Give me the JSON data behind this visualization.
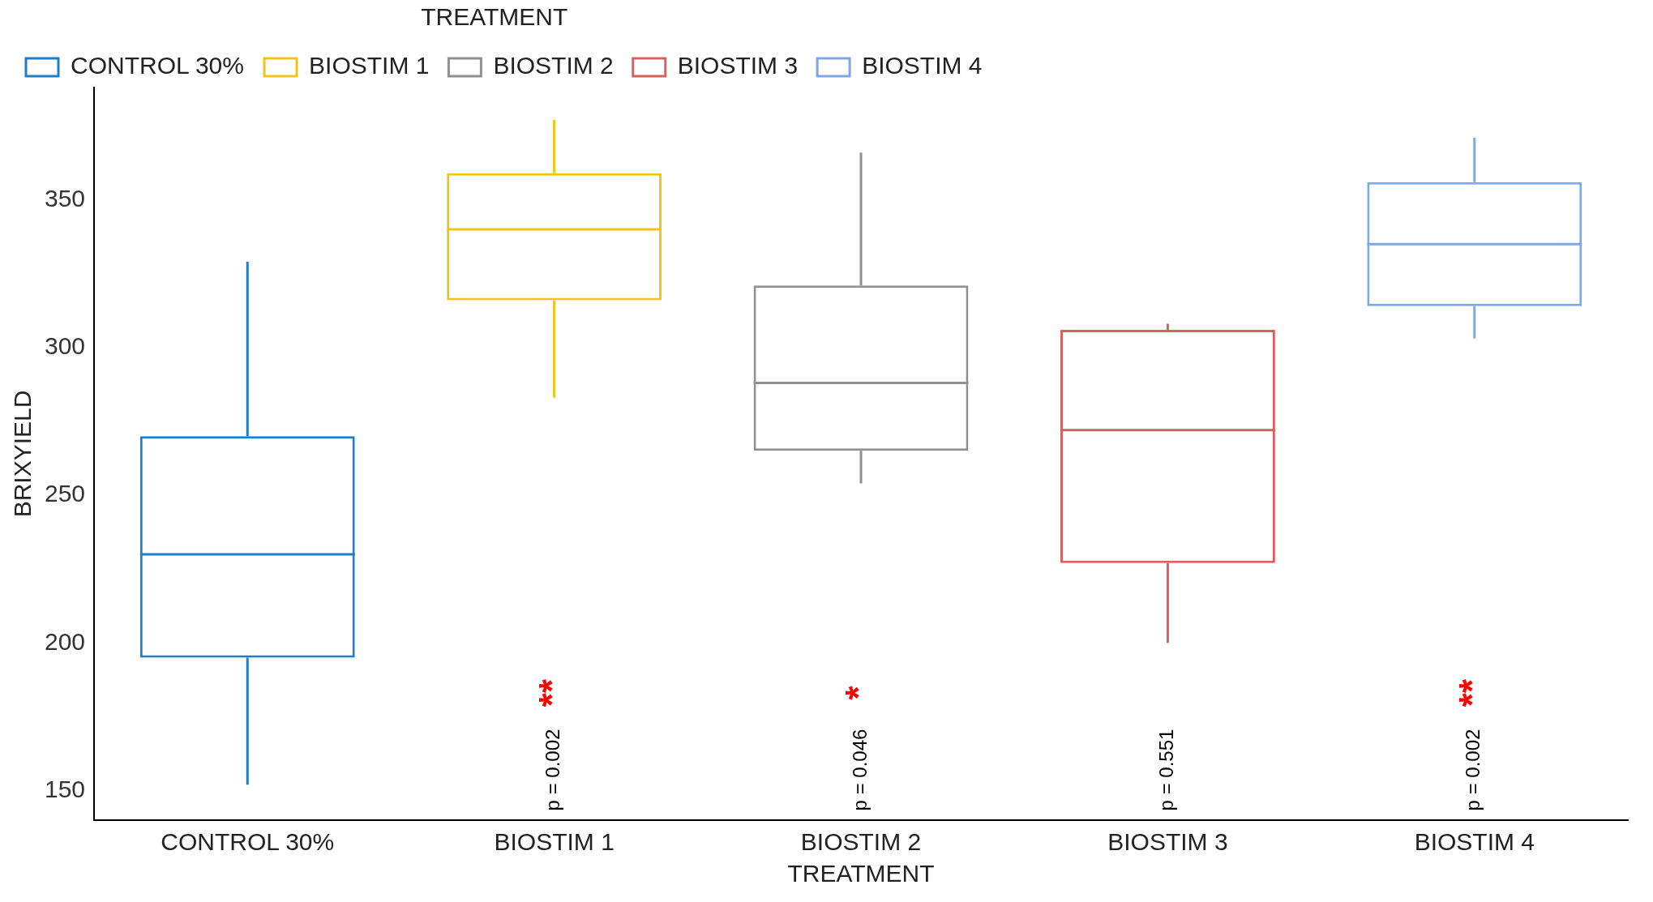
{
  "chart_data": {
    "type": "box",
    "xlabel": "TREATMENT",
    "ylabel": "BRIXYIELD",
    "legend_title": "TREATMENT",
    "legend": "top",
    "grid": false,
    "categories": [
      "CONTROL 30%",
      "BIOSTIM 1",
      "BIOSTIM 2",
      "BIOSTIM 3",
      "BIOSTIM 4"
    ],
    "series": [
      {
        "name": "CONTROL 30%",
        "color": "#1f7ec9",
        "boxes": [
          {
            "low": 152,
            "q1": 195,
            "median": 230,
            "q3": 270,
            "high": 329
          },
          null,
          null,
          null,
          null
        ]
      },
      {
        "name": "BIOSTIM 1",
        "color": "#f2c418",
        "boxes": [
          null,
          {
            "low": 283,
            "q1": 316,
            "median": 340,
            "q3": 359,
            "high": 377
          },
          null,
          null,
          null
        ]
      },
      {
        "name": "BIOSTIM 2",
        "color": "#909090",
        "boxes": [
          null,
          null,
          {
            "low": 254,
            "q1": 265,
            "median": 288,
            "q3": 321,
            "high": 366
          },
          null,
          null
        ]
      },
      {
        "name": "BIOSTIM 3",
        "color": "#d9605c",
        "boxes": [
          null,
          null,
          null,
          {
            "low": 200,
            "q1": 227,
            "median": 272,
            "q3": 306,
            "high": 308
          },
          null
        ]
      },
      {
        "name": "BIOSTIM 4",
        "color": "#7fa7e3",
        "boxes": [
          null,
          null,
          null,
          null,
          {
            "low": 303,
            "q1": 314,
            "median": 335,
            "q3": 356,
            "high": 371
          }
        ]
      }
    ],
    "ylim": [
      140,
      388
    ],
    "yticks": [
      150,
      200,
      250,
      300,
      350
    ],
    "annotations": [
      "**",
      "p = 0.002",
      "*",
      "p = 0.046",
      "p = 0.551",
      "**",
      "p = 0.002"
    ]
  }
}
